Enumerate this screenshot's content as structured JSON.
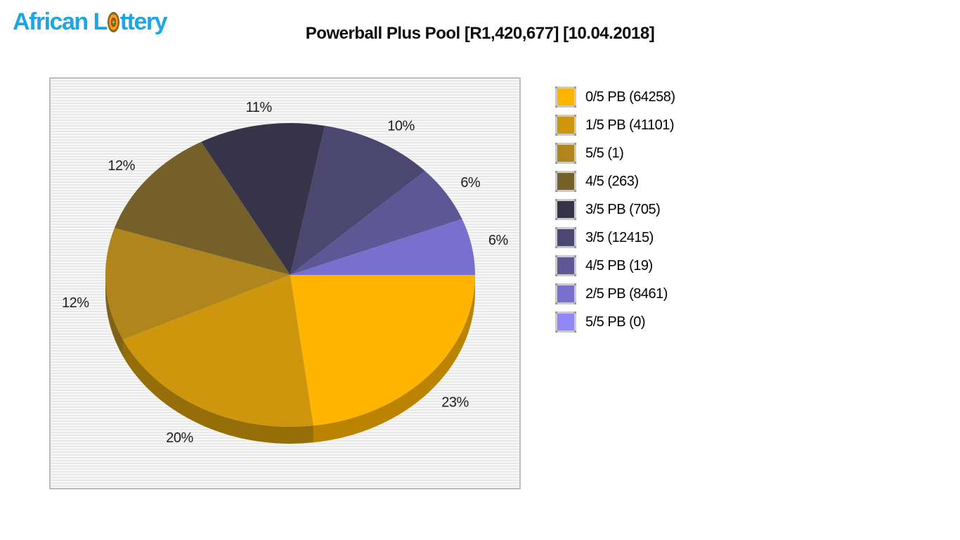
{
  "logo": {
    "prefix": "African L",
    "suffix": "ttery",
    "color": "#1CA6E8"
  },
  "header": {
    "title": "Powerball Plus Pool [R1,420,677] [10.04.2018]"
  },
  "chart_data": {
    "type": "pie",
    "style": "3d",
    "title": "Powerball Plus Pool [R1,420,677] [10.04.2018]",
    "pool_amount": "R1,420,677",
    "draw_date": "10.04.2018",
    "start_angle_deg": 0,
    "direction": "clockwise",
    "legend_position": "right",
    "background": "grey-horizontal-stripes",
    "slices": [
      {
        "label": "0/5 PB",
        "winners": 64258,
        "percent": 23,
        "color": "#FFB400"
      },
      {
        "label": "1/5 PB",
        "winners": 41101,
        "percent": 20,
        "color": "#CE960D"
      },
      {
        "label": "5/5",
        "winners": 1,
        "percent": 12,
        "color": "#B0861C"
      },
      {
        "label": "4/5",
        "winners": 263,
        "percent": 12,
        "color": "#75602A"
      },
      {
        "label": "3/5 PB",
        "winners": 705,
        "percent": 11,
        "color": "#373349"
      },
      {
        "label": "3/5",
        "winners": 12415,
        "percent": 10,
        "color": "#4C4770"
      },
      {
        "label": "4/5 PB",
        "winners": 19,
        "percent": 6,
        "color": "#5E5795"
      },
      {
        "label": "2/5 PB",
        "winners": 8461,
        "percent": 6,
        "color": "#7870CE"
      },
      {
        "label": "5/5 PB",
        "winners": 0,
        "percent": 0,
        "color": "#9188F8"
      }
    ],
    "percent_labels": [
      "23%",
      "20%",
      "12%",
      "12%",
      "11%",
      "10%",
      "6%",
      "6%"
    ],
    "legend_items": [
      "0/5 PB (64258)",
      "1/5 PB (41101)",
      "5/5 (1)",
      "4/5 (263)",
      "3/5 PB (705)",
      "3/5 (12415)",
      "4/5 PB (19)",
      "2/5 PB (8461)",
      "5/5 PB (0)"
    ]
  }
}
